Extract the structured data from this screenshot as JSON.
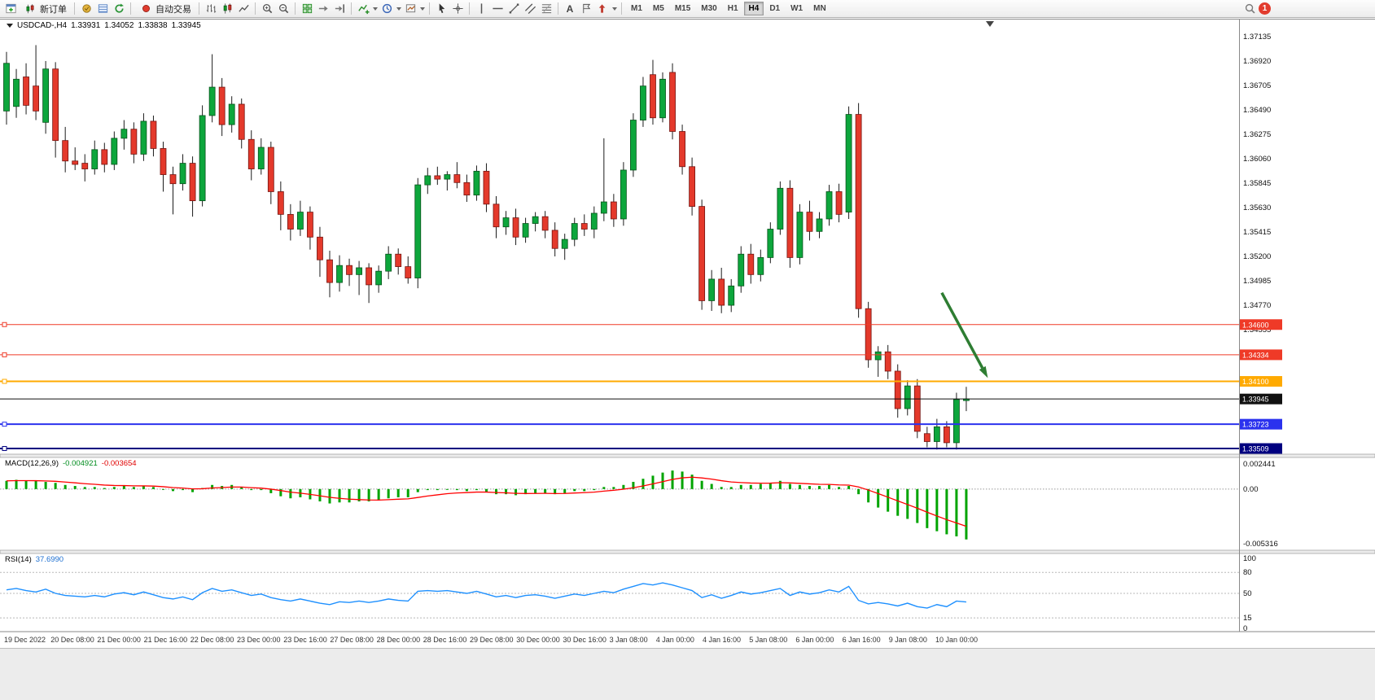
{
  "toolbar": {
    "new_order_label": "新订单",
    "autotrade_label": "自动交易",
    "text_tool_glyph": "A",
    "notification_count": "1",
    "timeframes": [
      "M1",
      "M5",
      "M15",
      "M30",
      "H1",
      "H4",
      "D1",
      "W1",
      "MN"
    ],
    "active_timeframe": "H4",
    "icons": [
      "new-order-ticket-icon",
      "candle-pair-icon",
      "market-watch-icon",
      "data-window-icon",
      "navigator-icon",
      "autotrading-dot-icon",
      "bar-chart-icon",
      "candlestick-chart-icon",
      "line-chart-icon",
      "zoom-in-icon",
      "zoom-out-icon",
      "tile-windows-icon",
      "auto-scroll-icon",
      "chart-shift-icon",
      "indicators-icon",
      "clock-icon",
      "templates-icon",
      "cursor-icon",
      "crosshair-icon",
      "vertical-line-icon",
      "horizontal-line-icon",
      "trendline-icon",
      "channel-icon",
      "fibonacci-icon",
      "text-icon",
      "text-label-icon",
      "arrows-icon",
      "search-icon"
    ]
  },
  "chart_data": {
    "type": "candlestick",
    "symbol": "USDCAD-",
    "timeframe": "H4",
    "ohlc_header": {
      "symbol_tf": "USDCAD-,H4",
      "open": "1.33931",
      "high": "1.34052",
      "low": "1.33838",
      "close": "1.33945"
    },
    "price_axis": {
      "range_top": 1.37278,
      "range_bottom": 1.33459,
      "ticks": [
        "1.37135",
        "1.36920",
        "1.36705",
        "1.36490",
        "1.36275",
        "1.36060",
        "1.35845",
        "1.35630",
        "1.35415",
        "1.35200",
        "1.34985",
        "1.34770",
        "1.34555"
      ]
    },
    "time_labels": [
      "19 Dec 2022",
      "20 Dec 08:00",
      "21 Dec 00:00",
      "21 Dec 16:00",
      "22 Dec 08:00",
      "23 Dec 00:00",
      "23 Dec 16:00",
      "27 Dec 08:00",
      "28 Dec 00:00",
      "28 Dec 16:00",
      "29 Dec 08:00",
      "30 Dec 00:00",
      "30 Dec 16:00",
      "3 Jan 08:00",
      "4 Jan 00:00",
      "4 Jan 16:00",
      "5 Jan 08:00",
      "6 Jan 00:00",
      "6 Jan 16:00",
      "9 Jan 08:00",
      "10 Jan 00:00"
    ],
    "up_color": "#0da63c",
    "down_color": "#e4392b",
    "candles": [
      [
        1.3648,
        1.37,
        1.3636,
        1.369
      ],
      [
        1.3652,
        1.3685,
        1.3642,
        1.3676
      ],
      [
        1.3678,
        1.369,
        1.3645,
        1.3653
      ],
      [
        1.367,
        1.3706,
        1.364,
        1.3648
      ],
      [
        1.3638,
        1.3692,
        1.3628,
        1.3685
      ],
      [
        1.3685,
        1.3691,
        1.3607,
        1.3622
      ],
      [
        1.3622,
        1.3634,
        1.3594,
        1.3604
      ],
      [
        1.3604,
        1.3616,
        1.3596,
        1.3601
      ],
      [
        1.3602,
        1.361,
        1.3586,
        1.3597
      ],
      [
        1.3597,
        1.3622,
        1.3592,
        1.3614
      ],
      [
        1.3614,
        1.362,
        1.3594,
        1.3601
      ],
      [
        1.3601,
        1.363,
        1.3596,
        1.3624
      ],
      [
        1.3624,
        1.364,
        1.3614,
        1.3632
      ],
      [
        1.3632,
        1.3638,
        1.3602,
        1.361
      ],
      [
        1.361,
        1.3646,
        1.3604,
        1.3639
      ],
      [
        1.3639,
        1.3644,
        1.3608,
        1.3615
      ],
      [
        1.3615,
        1.3621,
        1.3577,
        1.3592
      ],
      [
        1.3592,
        1.3599,
        1.3557,
        1.3584
      ],
      [
        1.3584,
        1.361,
        1.3578,
        1.3602
      ],
      [
        1.3602,
        1.3608,
        1.3555,
        1.3569
      ],
      [
        1.3569,
        1.3653,
        1.3564,
        1.3644
      ],
      [
        1.3644,
        1.3698,
        1.3638,
        1.3669
      ],
      [
        1.3669,
        1.3677,
        1.3626,
        1.3636
      ],
      [
        1.3636,
        1.3661,
        1.3629,
        1.3654
      ],
      [
        1.3654,
        1.3659,
        1.3615,
        1.3623
      ],
      [
        1.3623,
        1.3631,
        1.3587,
        1.3597
      ],
      [
        1.3597,
        1.3624,
        1.3592,
        1.3616
      ],
      [
        1.3616,
        1.3621,
        1.3566,
        1.3577
      ],
      [
        1.3577,
        1.3586,
        1.3543,
        1.3557
      ],
      [
        1.3557,
        1.3566,
        1.3534,
        1.3544
      ],
      [
        1.3544,
        1.3569,
        1.3538,
        1.3559
      ],
      [
        1.3559,
        1.3564,
        1.3526,
        1.3537
      ],
      [
        1.3537,
        1.3546,
        1.3502,
        1.3517
      ],
      [
        1.3517,
        1.3525,
        1.3484,
        1.3497
      ],
      [
        1.3497,
        1.3521,
        1.3489,
        1.3512
      ],
      [
        1.3512,
        1.3518,
        1.3494,
        1.3504
      ],
      [
        1.3504,
        1.3516,
        1.3486,
        1.351
      ],
      [
        1.351,
        1.3514,
        1.3479,
        1.3495
      ],
      [
        1.3495,
        1.3512,
        1.3488,
        1.3507
      ],
      [
        1.3507,
        1.3529,
        1.35,
        1.3522
      ],
      [
        1.3522,
        1.3527,
        1.3504,
        1.3511
      ],
      [
        1.3511,
        1.352,
        1.3496,
        1.3501
      ],
      [
        1.3501,
        1.3589,
        1.3492,
        1.3583
      ],
      [
        1.3583,
        1.3598,
        1.3575,
        1.3591
      ],
      [
        1.3591,
        1.3599,
        1.3583,
        1.3588
      ],
      [
        1.3588,
        1.3595,
        1.3578,
        1.3592
      ],
      [
        1.3592,
        1.3603,
        1.358,
        1.3585
      ],
      [
        1.3585,
        1.3592,
        1.3568,
        1.3574
      ],
      [
        1.3574,
        1.36,
        1.3569,
        1.3595
      ],
      [
        1.3595,
        1.3602,
        1.3559,
        1.3566
      ],
      [
        1.3566,
        1.3573,
        1.3536,
        1.3546
      ],
      [
        1.3546,
        1.356,
        1.3539,
        1.3554
      ],
      [
        1.3554,
        1.3562,
        1.353,
        1.3537
      ],
      [
        1.3537,
        1.3554,
        1.3532,
        1.3549
      ],
      [
        1.3549,
        1.3559,
        1.3542,
        1.3555
      ],
      [
        1.3555,
        1.356,
        1.3536,
        1.3543
      ],
      [
        1.3543,
        1.355,
        1.352,
        1.3527
      ],
      [
        1.3527,
        1.354,
        1.3517,
        1.3535
      ],
      [
        1.3535,
        1.3554,
        1.3529,
        1.3549
      ],
      [
        1.3549,
        1.3557,
        1.3538,
        1.3544
      ],
      [
        1.3544,
        1.3564,
        1.3536,
        1.3558
      ],
      [
        1.3558,
        1.3624,
        1.3551,
        1.3568
      ],
      [
        1.3568,
        1.3575,
        1.3546,
        1.3553
      ],
      [
        1.3553,
        1.3603,
        1.3547,
        1.3596
      ],
      [
        1.3596,
        1.3646,
        1.359,
        1.364
      ],
      [
        1.364,
        1.3678,
        1.3634,
        1.367
      ],
      [
        1.368,
        1.3693,
        1.3636,
        1.3642
      ],
      [
        1.3642,
        1.3682,
        1.3638,
        1.3676
      ],
      [
        1.3682,
        1.369,
        1.3623,
        1.363
      ],
      [
        1.363,
        1.3636,
        1.3592,
        1.3599
      ],
      [
        1.3599,
        1.3607,
        1.3556,
        1.3564
      ],
      [
        1.3564,
        1.357,
        1.3473,
        1.3481
      ],
      [
        1.3481,
        1.3508,
        1.3472,
        1.35
      ],
      [
        1.35,
        1.351,
        1.347,
        1.3477
      ],
      [
        1.3477,
        1.35,
        1.3471,
        1.3494
      ],
      [
        1.3494,
        1.3529,
        1.3488,
        1.3522
      ],
      [
        1.3522,
        1.3531,
        1.3496,
        1.3504
      ],
      [
        1.3504,
        1.3526,
        1.3498,
        1.3519
      ],
      [
        1.3519,
        1.355,
        1.3514,
        1.3544
      ],
      [
        1.3544,
        1.3586,
        1.3539,
        1.358
      ],
      [
        1.358,
        1.3587,
        1.351,
        1.3519
      ],
      [
        1.3519,
        1.3566,
        1.3513,
        1.3559
      ],
      [
        1.3559,
        1.3569,
        1.3534,
        1.3542
      ],
      [
        1.3542,
        1.3559,
        1.3536,
        1.3553
      ],
      [
        1.3553,
        1.3583,
        1.3547,
        1.3577
      ],
      [
        1.3577,
        1.3584,
        1.355,
        1.3557
      ],
      [
        1.3559,
        1.3652,
        1.3553,
        1.3645
      ],
      [
        1.3645,
        1.3655,
        1.3466,
        1.3474
      ],
      [
        1.3474,
        1.348,
        1.3422,
        1.3429
      ],
      [
        1.3429,
        1.3441,
        1.3414,
        1.3436
      ],
      [
        1.3436,
        1.3442,
        1.3412,
        1.3419
      ],
      [
        1.3419,
        1.3425,
        1.3378,
        1.3386
      ],
      [
        1.3386,
        1.3411,
        1.338,
        1.3406
      ],
      [
        1.3406,
        1.3412,
        1.336,
        1.3366
      ],
      [
        1.3364,
        1.337,
        1.3352,
        1.3357
      ],
      [
        1.3357,
        1.3377,
        1.335,
        1.337
      ],
      [
        1.337,
        1.3375,
        1.3352,
        1.3356
      ],
      [
        1.3356,
        1.34,
        1.335,
        1.3394
      ],
      [
        1.33931,
        1.34052,
        1.33838,
        1.33945
      ]
    ],
    "horizontal_lines": [
      {
        "price": 1.346,
        "label": "1.34600",
        "color": "#ef3a27",
        "thickness": 1,
        "handle": true
      },
      {
        "price": 1.34334,
        "label": "1.34334",
        "color": "#ef3a27",
        "thickness": 1,
        "handle": true
      },
      {
        "price": 1.341,
        "label": "1.34100",
        "color": "#ffaa00",
        "thickness": 2,
        "handle": true
      },
      {
        "price": 1.33945,
        "label": "1.33945",
        "color": "#111111",
        "thickness": 1,
        "handle": false
      },
      {
        "price": 1.33723,
        "label": "1.33723",
        "color": "#2b32ee",
        "thickness": 2,
        "handle": true
      },
      {
        "price": 1.33509,
        "label": "1.33509",
        "color": "#000080",
        "thickness": 2,
        "handle": true
      }
    ],
    "annotation_arrow": {
      "from_index": 95.5,
      "from_price": 1.3488,
      "to_index": 100.2,
      "to_price": 1.3413,
      "color": "#2e7d32"
    },
    "macd": {
      "label": "MACD(12,26,9)",
      "value_text": "-0.004921",
      "signal_text": "-0.003654",
      "bar_color": "#00a400",
      "signal_color": "#ff0000",
      "axis": [
        {
          "t": "0.002441",
          "v": 0.002441
        },
        {
          "t": "0.00",
          "v": 0
        },
        {
          "t": "-0.005316",
          "v": -0.005316
        }
      ],
      "histogram": [
        0.0008,
        0.0009,
        0.0008,
        0.0008,
        0.0007,
        0.0006,
        0.0004,
        0.0003,
        0.0002,
        0.0002,
        0.0001,
        0.0002,
        0.0003,
        0.0002,
        0.0003,
        0.0002,
        0.0,
        -0.0002,
        -0.0001,
        -0.0003,
        0.0001,
        0.0004,
        0.0003,
        0.0004,
        0.0002,
        -0.0001,
        -0.0001,
        -0.0004,
        -0.0007,
        -0.0009,
        -0.0008,
        -0.001,
        -0.0012,
        -0.0014,
        -0.0013,
        -0.0013,
        -0.0012,
        -0.0012,
        -0.0011,
        -0.0009,
        -0.0008,
        -0.0008,
        -0.0003,
        -0.0001,
        -0.0001,
        0.0,
        -0.0001,
        -0.0002,
        -0.0001,
        -0.0003,
        -0.0005,
        -0.0005,
        -0.0006,
        -0.0005,
        -0.0004,
        -0.0004,
        -0.0005,
        -0.0004,
        -0.0002,
        -0.0002,
        -0.0001,
        0.0002,
        0.0002,
        0.0004,
        0.0007,
        0.001,
        0.0013,
        0.0016,
        0.0018,
        0.0017,
        0.0014,
        0.0008,
        0.0005,
        0.0002,
        0.0002,
        0.0004,
        0.0004,
        0.0005,
        0.0006,
        0.0008,
        0.0005,
        0.0004,
        0.0003,
        0.0003,
        0.0004,
        0.0002,
        0.0003,
        -0.0005,
        -0.0013,
        -0.0018,
        -0.0022,
        -0.0026,
        -0.0029,
        -0.0033,
        -0.0038,
        -0.0041,
        -0.0044,
        -0.0046,
        -0.0049
      ]
    },
    "rsi": {
      "label": "RSI(14)",
      "value_text": "37.6990",
      "line_color": "#1e90ff",
      "axis": [
        {
          "t": "100",
          "v": 100
        },
        {
          "t": "80",
          "v": 80
        },
        {
          "t": "50",
          "v": 50
        },
        {
          "t": "15",
          "v": 15
        },
        {
          "t": "0",
          "v": 0
        }
      ],
      "levels": [
        80,
        50,
        15
      ],
      "values": [
        55,
        57,
        54,
        52,
        56,
        50,
        47,
        46,
        45,
        47,
        45,
        49,
        51,
        48,
        52,
        48,
        44,
        42,
        45,
        41,
        51,
        57,
        53,
        55,
        51,
        47,
        49,
        44,
        41,
        39,
        42,
        39,
        36,
        34,
        38,
        37,
        39,
        37,
        39,
        42,
        40,
        39,
        53,
        54,
        53,
        54,
        52,
        50,
        53,
        49,
        45,
        47,
        44,
        47,
        48,
        46,
        43,
        46,
        49,
        47,
        50,
        53,
        51,
        56,
        60,
        64,
        62,
        65,
        62,
        58,
        54,
        44,
        48,
        43,
        47,
        52,
        49,
        51,
        54,
        57,
        47,
        52,
        49,
        51,
        55,
        52,
        60,
        40,
        35,
        37,
        35,
        32,
        36,
        31,
        29,
        34,
        31,
        39,
        37.7
      ]
    }
  }
}
